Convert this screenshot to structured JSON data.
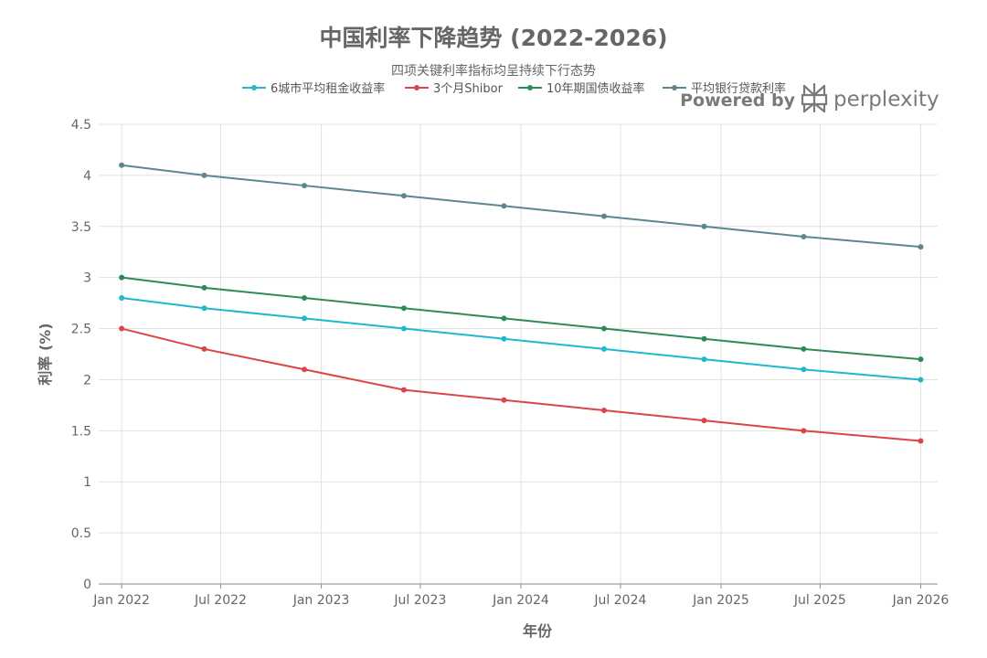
{
  "branding": {
    "powered_by": "Powered by",
    "name": "perplexity",
    "icon": "perplexity-logo-icon"
  },
  "chart_data": {
    "type": "line",
    "title": "中国利率下降趋势 (2022-2026)",
    "subtitle": "四项关键利率指标均呈持续下行态势",
    "xlabel": "年份",
    "ylabel": "利率 (%)",
    "x": [
      "2022-01-01",
      "2022-07-01",
      "2023-01-01",
      "2023-07-01",
      "2024-01-01",
      "2024-07-01",
      "2025-01-01",
      "2025-07-01",
      "2026-01-01"
    ],
    "points": [
      "2022-01",
      "2022-06",
      "2022-12",
      "2023-06",
      "2023-12",
      "2024-06",
      "2024-12",
      "2025-06",
      "2026-01"
    ],
    "x_tick_labels": [
      "Jan 2022",
      "Jul 2022",
      "Jan 2023",
      "Jul 2023",
      "Jan 2024",
      "Jul 2024",
      "Jan 2025",
      "Jul 2025",
      "Jan 2026"
    ],
    "y_tick_labels": [
      "0",
      "0.5",
      "1",
      "1.5",
      "2",
      "2.5",
      "3",
      "3.5",
      "4",
      "4.5"
    ],
    "ylim": [
      0,
      4.5
    ],
    "grid": true,
    "legend_position": "top-center",
    "series": [
      {
        "name": "6城市平均租金收益率",
        "color": "#1fb8cd",
        "values": [
          2.8,
          2.7,
          2.6,
          2.5,
          2.4,
          2.3,
          2.2,
          2.1,
          2.0
        ]
      },
      {
        "name": "3个月Shibor",
        "color": "#db4545",
        "values": [
          2.5,
          2.3,
          2.1,
          1.9,
          1.8,
          1.7,
          1.6,
          1.5,
          1.4
        ]
      },
      {
        "name": "10年期国债收益率",
        "color": "#2e8b57",
        "values": [
          3.0,
          2.9,
          2.8,
          2.7,
          2.6,
          2.5,
          2.4,
          2.3,
          2.2
        ]
      },
      {
        "name": "平均银行贷款利率",
        "color": "#5d878f",
        "values": [
          4.1,
          4.0,
          3.9,
          3.8,
          3.7,
          3.6,
          3.5,
          3.4,
          3.3
        ]
      }
    ]
  }
}
